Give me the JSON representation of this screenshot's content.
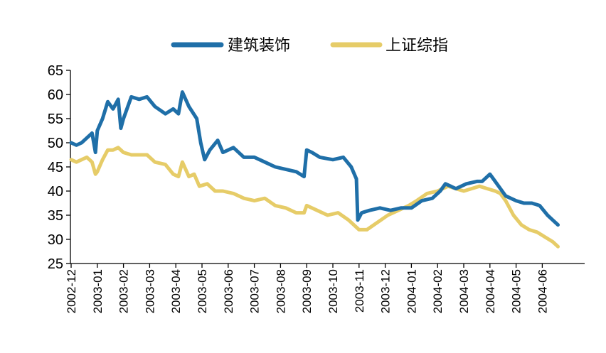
{
  "chart_data": {
    "type": "line",
    "title": "",
    "xlabel": "",
    "ylabel": "",
    "ylim": [
      25,
      65
    ],
    "yticks": [
      25,
      30,
      35,
      40,
      45,
      50,
      55,
      60,
      65
    ],
    "categories": [
      "2002-12",
      "2003-01",
      "2003-02",
      "2003-03",
      "2003-04",
      "2003-05",
      "2003-06",
      "2003-07",
      "2003-08",
      "2003-09",
      "2003-10",
      "2003-11",
      "2003-12",
      "2004-01",
      "2004-02",
      "2004-03",
      "2004-04",
      "2004-05",
      "2004-06"
    ],
    "legend_position": "top-center",
    "grid": false,
    "series": [
      {
        "name": "建筑装饰",
        "color": "#1F6FA8",
        "x": [
          0,
          0.2,
          0.4,
          0.6,
          0.8,
          0.93,
          1.0,
          1.2,
          1.4,
          1.6,
          1.8,
          1.9,
          2.0,
          2.3,
          2.6,
          2.9,
          3.2,
          3.6,
          3.9,
          4.1,
          4.25,
          4.5,
          4.8,
          4.95,
          5.1,
          5.3,
          5.6,
          5.8,
          6.2,
          6.6,
          7.0,
          7.4,
          7.8,
          8.2,
          8.6,
          8.9,
          9.0,
          9.2,
          9.5,
          10.0,
          10.4,
          10.7,
          10.9,
          10.95,
          11.1,
          11.4,
          11.8,
          12.2,
          12.6,
          13.0,
          13.4,
          13.8,
          14.1,
          14.3,
          14.7,
          15.1,
          15.5,
          15.7,
          16.0,
          16.2,
          16.6,
          17.0,
          17.3,
          17.6,
          17.9,
          18.2,
          18.4,
          18.6
        ],
        "values": [
          50,
          49.5,
          50,
          51,
          52,
          48,
          52.5,
          55,
          58.5,
          57,
          59,
          53,
          55,
          59.5,
          59,
          59.5,
          57.5,
          56,
          57,
          56,
          60.5,
          57.5,
          55,
          50,
          46.5,
          48.5,
          50.5,
          48,
          49,
          47,
          47,
          46,
          45,
          44.5,
          44,
          43,
          48.5,
          48,
          47,
          46.5,
          47,
          45,
          42.5,
          34,
          35.5,
          36,
          36.5,
          36,
          36.5,
          36.5,
          38,
          38.5,
          40,
          41.5,
          40.5,
          41.5,
          42,
          42,
          43.5,
          42,
          39,
          38,
          37.5,
          37.5,
          37,
          35,
          34,
          33
        ]
      },
      {
        "name": "上证综指",
        "color": "#E6CC68",
        "x": [
          0,
          0.2,
          0.4,
          0.6,
          0.8,
          0.93,
          1.0,
          1.2,
          1.4,
          1.6,
          1.8,
          2.0,
          2.3,
          2.6,
          2.9,
          3.2,
          3.6,
          3.9,
          4.1,
          4.25,
          4.5,
          4.7,
          4.9,
          5.2,
          5.5,
          5.8,
          6.2,
          6.6,
          7.0,
          7.4,
          7.8,
          8.2,
          8.6,
          8.9,
          9.0,
          9.4,
          9.8,
          10.2,
          10.6,
          10.9,
          11.0,
          11.3,
          11.7,
          12.1,
          12.5,
          12.9,
          13.2,
          13.6,
          14.0,
          14.2,
          14.4,
          14.7,
          15.0,
          15.3,
          15.6,
          15.9,
          16.2,
          16.4,
          16.6,
          16.9,
          17.2,
          17.5,
          17.8,
          18.1,
          18.4,
          18.6
        ],
        "values": [
          46.5,
          46,
          46.5,
          47,
          46,
          43.5,
          44,
          46.5,
          48.5,
          48.5,
          49,
          48,
          47.5,
          47.5,
          47.5,
          46,
          45.5,
          43.5,
          43,
          46,
          43,
          43.5,
          41,
          41.5,
          40,
          40,
          39.5,
          38.5,
          38,
          38.5,
          37,
          36.5,
          35.5,
          35.5,
          37,
          36,
          35,
          35.5,
          34,
          32.5,
          32,
          32,
          33.5,
          35,
          36,
          37,
          38,
          39.5,
          40,
          40.5,
          41,
          40.5,
          40,
          40.5,
          41,
          40.5,
          40,
          39.5,
          38,
          35,
          33,
          32,
          31.5,
          30.5,
          29.5,
          28.5
        ]
      }
    ]
  }
}
